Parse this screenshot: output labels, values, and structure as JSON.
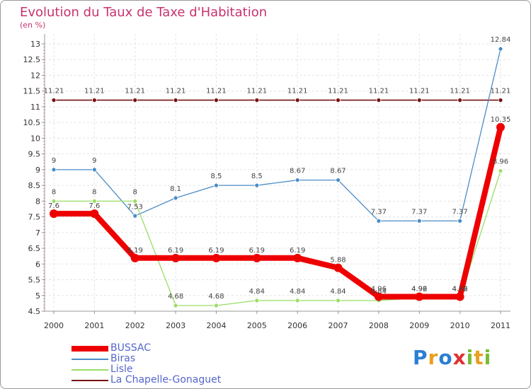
{
  "chart_data": {
    "type": "line",
    "title": "Evolution du Taux de Taxe d'Habitation",
    "subtitle": "(en %)",
    "xlabel": "",
    "ylabel": "",
    "ylim": [
      4.5,
      13
    ],
    "yticks": [
      "4.5",
      "5",
      "5.5",
      "6",
      "6.5",
      "7",
      "7.5",
      "8",
      "8.5",
      "9",
      "9.5",
      "10",
      "10.5",
      "11",
      "11.5",
      "12",
      "12.5",
      "13"
    ],
    "categories": [
      "2000",
      "2001",
      "2002",
      "2003",
      "2004",
      "2005",
      "2006",
      "2007",
      "2008",
      "2009",
      "2010",
      "2011"
    ],
    "series": [
      {
        "name": "BUSSAC",
        "color": "#ee0000",
        "values": [
          7.6,
          7.6,
          6.19,
          6.19,
          6.19,
          6.19,
          6.19,
          5.88,
          4.96,
          4.96,
          4.96,
          10.35
        ],
        "labels": [
          "7.6",
          "7.6",
          "6.19",
          "6.19",
          "6.19",
          "6.19",
          "6.19",
          "5.88",
          "4.96",
          "4.96",
          "4.96",
          "10.35"
        ]
      },
      {
        "name": "Biras",
        "color": "#4a8cc8",
        "values": [
          9,
          9,
          7.53,
          8.1,
          8.5,
          8.5,
          8.67,
          8.67,
          7.37,
          7.37,
          7.37,
          12.84
        ],
        "labels": [
          "9",
          "9",
          "7.53",
          "8.1",
          "8.5",
          "8.5",
          "8.67",
          "8.67",
          "7.37",
          "7.37",
          "7.37",
          "12.84"
        ]
      },
      {
        "name": "Lisle",
        "color": "#99dd66",
        "values": [
          8,
          8,
          8,
          4.68,
          4.68,
          4.84,
          4.84,
          4.84,
          4.84,
          4.92,
          4.92,
          8.96
        ],
        "labels": [
          "8",
          "8",
          "8",
          "4.68",
          "4.68",
          "4.84",
          "4.84",
          "4.84",
          "4.84",
          "4.92",
          "4.92",
          "8.96"
        ]
      },
      {
        "name": "La Chapelle-Gonaguet",
        "color": "#771111",
        "values": [
          11.21,
          11.21,
          11.21,
          11.21,
          11.21,
          11.21,
          11.21,
          11.21,
          11.21,
          11.21,
          11.21,
          11.21
        ],
        "labels": [
          "11.21",
          "11.21",
          "11.21",
          "11.21",
          "11.21",
          "11.21",
          "11.21",
          "11.21",
          "11.21",
          "11.21",
          "11.21",
          "11.21"
        ]
      }
    ],
    "legend_position": "bottom-left"
  },
  "logo": {
    "text": "Proxiti",
    "letters": [
      "P",
      "r",
      "o",
      "x",
      "i",
      "t",
      "i"
    ]
  }
}
